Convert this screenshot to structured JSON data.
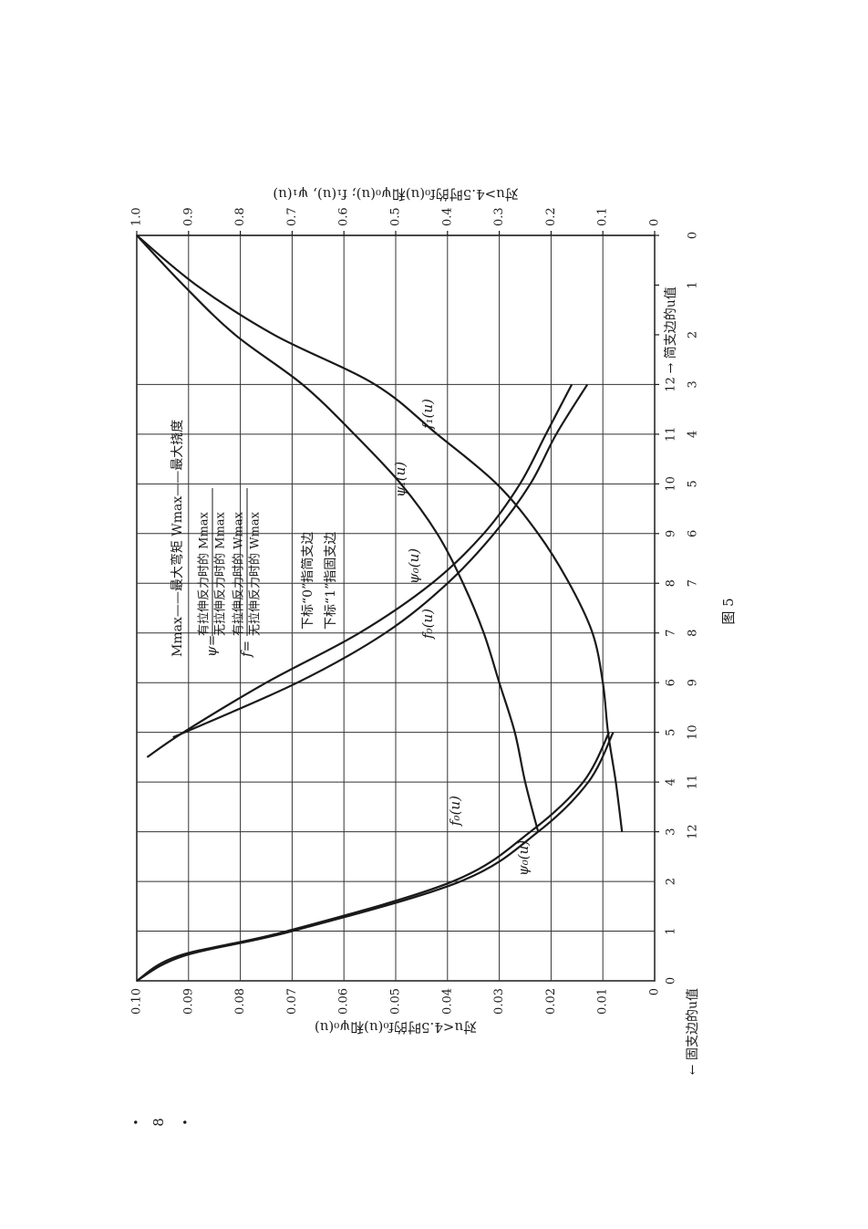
{
  "chart_data": {
    "type": "line",
    "ylabel": "对u<4.5时的f₀(u)和ψ₀(u)",
    "y2label": "对u>4.5时的f₀(u)和ψ₀(u); f₁(u), ψ₁(u)",
    "xlabel": "← 固支边的u值",
    "x2label": "→ 简支边的u值",
    "xlim": [
      0,
      15
    ],
    "xticks": [
      0,
      1,
      2,
      3,
      4,
      5,
      6,
      7,
      8,
      9,
      10,
      11,
      12
    ],
    "x2lim": [
      15,
      0
    ],
    "x2ticks": [
      0,
      1,
      2,
      3,
      4,
      5,
      6,
      7,
      8,
      9,
      10,
      11,
      12
    ],
    "ylim": [
      0,
      0.1
    ],
    "yticks": [
      0,
      0.01,
      0.02,
      0.03,
      0.04,
      0.05,
      0.06,
      0.07,
      0.08,
      0.09,
      {
        "value": 0.1,
        "label": "0.10"
      }
    ],
    "y2lim": [
      0,
      1
    ],
    "y2ticks": [
      0,
      0.1,
      0.2,
      0.3,
      0.4,
      0.5,
      0.6,
      0.7,
      0.8,
      0.9,
      {
        "value": 1,
        "label": "1.0"
      }
    ],
    "grid": true,
    "series": [
      {
        "name": "f₀(u)",
        "color": "#1a1a1a",
        "xaxis": "x",
        "axis": "y",
        "x": [
          0,
          0.5,
          1,
          2,
          3,
          4,
          5
        ],
        "values": [
          0.1,
          0.092,
          0.071,
          0.039,
          0.024,
          0.0138,
          0.0088
        ]
      },
      {
        "name": "ψ₀(u)",
        "color": "#1a1a1a",
        "xaxis": "x",
        "axis": "y",
        "x": [
          0,
          0.5,
          1,
          2,
          3,
          4,
          5
        ],
        "values": [
          0.1,
          0.091,
          0.07,
          0.0375,
          0.0225,
          0.0128,
          0.008
        ]
      },
      {
        "name": "f₀(u)",
        "color": "#1a1a1a",
        "xaxis": "x",
        "axis": "y2",
        "x": [
          4.5,
          5,
          6,
          7,
          8,
          9,
          10,
          11,
          12
        ],
        "values": [
          0.98,
          0.91,
          0.75,
          0.57,
          0.43,
          0.33,
          0.26,
          0.21,
          0.16
        ]
      },
      {
        "name": "ψ₀(u)",
        "color": "#1a1a1a",
        "xaxis": "x",
        "axis": "y2",
        "x": [
          4.9,
          6,
          7,
          8,
          9,
          10,
          11,
          12
        ],
        "values": [
          0.93,
          0.69,
          0.52,
          0.4,
          0.31,
          0.24,
          0.19,
          0.13
        ]
      },
      {
        "name": "f₁(u)",
        "color": "#1a1a1a",
        "xaxis": "x2",
        "axis": "y2",
        "x": [
          0,
          1,
          2,
          3,
          4,
          5,
          6,
          7,
          8,
          9,
          10,
          11,
          12
        ],
        "values": [
          1,
          0.885,
          0.735,
          0.54,
          0.42,
          0.305,
          0.225,
          0.165,
          0.12,
          0.1,
          0.09,
          0.075,
          0.063
        ]
      },
      {
        "name": "ψ₁(u)",
        "color": "#1a1a1a",
        "xaxis": "x2",
        "axis": "y2",
        "x": [
          0,
          1,
          2,
          3,
          4,
          5,
          6,
          7,
          8,
          9,
          10,
          11,
          12
        ],
        "values": [
          1,
          0.91,
          0.81,
          0.68,
          0.58,
          0.49,
          0.42,
          0.37,
          0.33,
          0.3,
          0.27,
          0.25,
          0.225
        ]
      }
    ],
    "annotations": {
      "legend_line": "Mmax——最大弯矩    Wmax——最大挠度",
      "psi": {
        "lhs": "ψ=",
        "numerator": "有拉伸反力时的 Mmax",
        "denominator": "无拉伸反力时的 Mmax"
      },
      "f": {
        "lhs": "f=",
        "numerator": "有拉伸反力时的 Wmax",
        "denominator": "无拉伸反力时的 Wmax"
      },
      "note0": "下标“0”指简支边",
      "note1": "下标“1”指固支边"
    }
  },
  "caption": "图 5",
  "page_number": "8"
}
